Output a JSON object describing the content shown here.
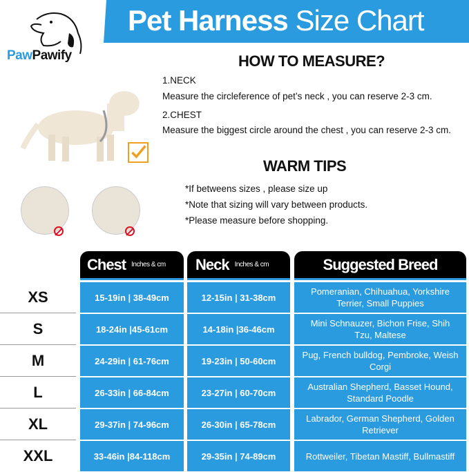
{
  "brand": {
    "name_part1": "Paw",
    "name_part2": "Pawify",
    "color": "#2b9be0"
  },
  "header": {
    "title_bold": "Pet Harness",
    "title_light": "Size Chart"
  },
  "measure": {
    "heading": "HOW TO MEASURE?",
    "neck_label": "1.NECK",
    "neck_text": "Measure the circleference of pet’s neck , you can reserve 2-3 cm.",
    "chest_label": "2.CHEST",
    "chest_text": "Measure the biggest circle around the chest , you can reserve 2-3 cm."
  },
  "tips": {
    "heading": "WARM TIPS",
    "items": [
      "*If betweens sizes , please size up",
      "*Note that sizing will vary between products.",
      "*Please measure before shopping."
    ]
  },
  "table": {
    "headers": {
      "chest": "Chest",
      "chest_unit": "Inches & cm",
      "neck": "Neck",
      "neck_unit": "Inches & cm",
      "breed": "Suggested Breed"
    },
    "rows": [
      {
        "size": "XS",
        "chest": "15-19in | 38-49cm",
        "neck": "12-15in | 31-38cm",
        "breed": "Pomeranian, Chihuahua, Yorkshire Terrier, Small Puppies"
      },
      {
        "size": "S",
        "chest": "18-24in |45-61cm",
        "neck": "14-18in |36-46cm",
        "breed": "Mini Schnauzer, Bichon Frise, Shih Tzu, Maltese"
      },
      {
        "size": "M",
        "chest": "24-29in | 61-76cm",
        "neck": "19-23in | 50-60cm",
        "breed": "Pug, French bulldog, Pembroke, Weish Corgi"
      },
      {
        "size": "L",
        "chest": "26-33in | 66-84cm",
        "neck": "23-27in | 60-70cm",
        "breed": "Australian Shepherd, Basset Hound, Standard Poodle"
      },
      {
        "size": "XL",
        "chest": "29-37in | 74-96cm",
        "neck": "26-30in | 65-78cm",
        "breed": "Labrador, German Shepherd, Golden Retriever"
      },
      {
        "size": "XXL",
        "chest": "33-46in |84-118cm",
        "neck": "29-35in | 74-89cm",
        "breed": "Rottweiler, Tibetan Mastiff, Bullmastiff"
      }
    ]
  }
}
